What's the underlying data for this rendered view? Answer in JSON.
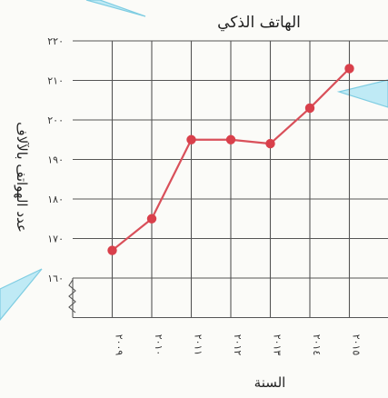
{
  "chart_data": {
    "type": "line",
    "title": "الهاتف الذكي",
    "xlabel": "السنة",
    "ylabel": "عدد الهواتف بالآلاف",
    "categories": [
      "٢٠٠٩",
      "٢٠١٠",
      "٢٠١١",
      "٢٠١٢",
      "٢٠١٣",
      "٢٠١٤",
      "٢٠١٥"
    ],
    "y_ticks": [
      "١٦٠",
      "١٧٠",
      "١٨٠",
      "١٩٠",
      "٢٠٠",
      "٢١٠",
      "٢٢٠"
    ],
    "values": [
      167,
      175,
      195,
      195,
      194,
      203,
      213
    ],
    "ylim": [
      160,
      220
    ],
    "y_axis_break": true,
    "grid": true,
    "colors": {
      "line": "#d9505a",
      "marker": "#d9404b",
      "grid": "#555555",
      "callout": "#8fd8ea"
    }
  }
}
